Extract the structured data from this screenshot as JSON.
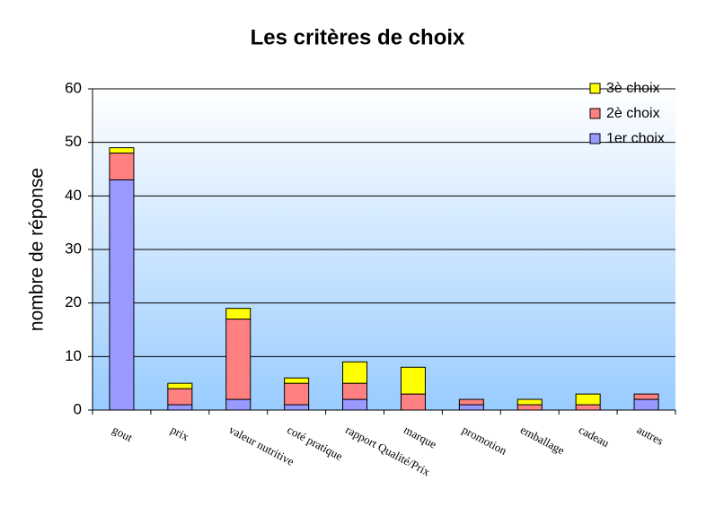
{
  "chart_data": {
    "type": "stacked-bar",
    "title": "Les critères de choix",
    "y_label": "nombre de réponse",
    "categories": [
      "gout",
      "prix",
      "valeur nutritive",
      "coté pratique",
      "rapport Qualité/Prix",
      "marque",
      "promotion",
      "emballage",
      "cadeau",
      "autres"
    ],
    "series": [
      {
        "name": "1er choix",
        "color": "#9999ff",
        "values": [
          43,
          1,
          2,
          1,
          2,
          0,
          1,
          0,
          0,
          2
        ]
      },
      {
        "name": "2è choix",
        "color": "#ff8080",
        "values": [
          5,
          3,
          15,
          4,
          3,
          3,
          1,
          1,
          1,
          1
        ]
      },
      {
        "name": "3è choix",
        "color": "#ffff00",
        "values": [
          1,
          1,
          2,
          1,
          4,
          5,
          0,
          1,
          2,
          0
        ]
      }
    ],
    "ylim": [
      0,
      60
    ],
    "yticks": [
      0,
      10,
      20,
      30,
      40,
      50,
      60
    ],
    "grid": true,
    "legend": "top-right"
  }
}
